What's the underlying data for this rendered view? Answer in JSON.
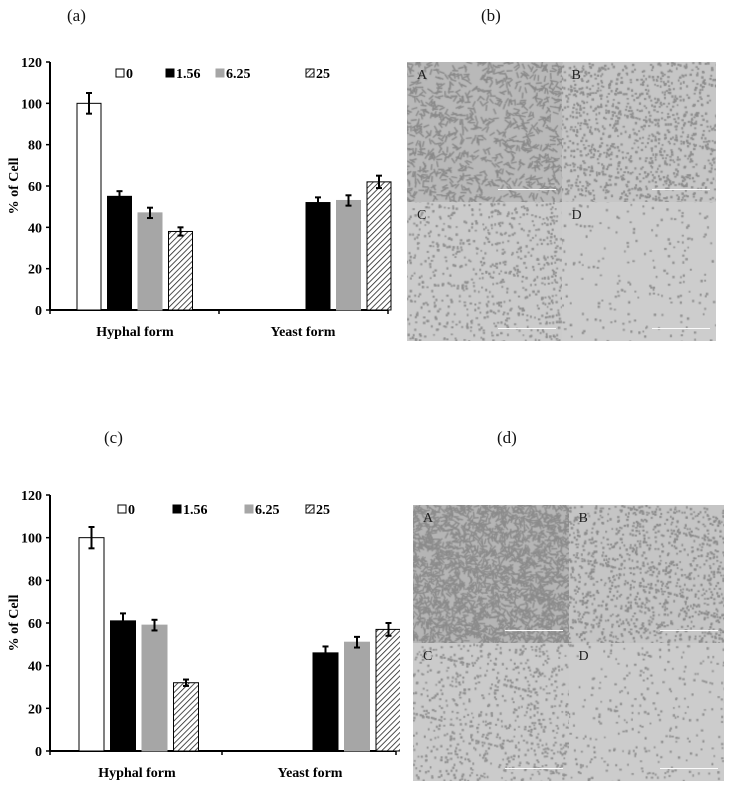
{
  "panels": {
    "a": {
      "label": "(a)"
    },
    "b": {
      "label": "(b)"
    },
    "c": {
      "label": "(c)"
    },
    "d": {
      "label": "(d)"
    }
  },
  "legend": [
    {
      "label": "0",
      "fill": "#ffffff",
      "pattern": "none"
    },
    {
      "label": "1.56",
      "fill": "#000000",
      "pattern": "none"
    },
    {
      "label": "6.25",
      "fill": "#a6a6a6",
      "pattern": "none"
    },
    {
      "label": "25",
      "fill": "#ffffff",
      "pattern": "hatch"
    }
  ],
  "axis": {
    "ylabel": "% of Cell",
    "yticks": [
      "0",
      "20",
      "40",
      "60",
      "80",
      "100",
      "120"
    ],
    "categories": [
      "Hyphal form",
      "Yeast form"
    ]
  },
  "micrographs": {
    "b": {
      "tiles": [
        "A",
        "B",
        "C",
        "D"
      ]
    },
    "d": {
      "tiles": [
        "A",
        "B",
        "C",
        "D"
      ]
    }
  },
  "chart_data": [
    {
      "panel": "(a)",
      "type": "bar",
      "title": "",
      "xlabel": "",
      "ylabel": "% of Cell",
      "ylim": [
        0,
        120
      ],
      "yticks": [
        0,
        20,
        40,
        60,
        80,
        100,
        120
      ],
      "categories": [
        "Hyphal form",
        "Yeast form"
      ],
      "legend_position": "top",
      "grid": false,
      "series": [
        {
          "name": "0",
          "values": [
            100,
            null
          ],
          "errors": [
            5,
            null
          ]
        },
        {
          "name": "1.56",
          "values": [
            55,
            52
          ],
          "errors": [
            2.5,
            2.5
          ]
        },
        {
          "name": "6.25",
          "values": [
            47,
            53
          ],
          "errors": [
            2.5,
            2.5
          ]
        },
        {
          "name": "25",
          "values": [
            38,
            62
          ],
          "errors": [
            2,
            3
          ]
        }
      ]
    },
    {
      "panel": "(c)",
      "type": "bar",
      "title": "",
      "xlabel": "",
      "ylabel": "% of Cell",
      "ylim": [
        0,
        120
      ],
      "yticks": [
        0,
        20,
        40,
        60,
        80,
        100,
        120
      ],
      "categories": [
        "Hyphal form",
        "Yeast form"
      ],
      "legend_position": "top",
      "grid": false,
      "series": [
        {
          "name": "0",
          "values": [
            100,
            null
          ],
          "errors": [
            5,
            null
          ]
        },
        {
          "name": "1.56",
          "values": [
            61,
            46
          ],
          "errors": [
            3.5,
            3
          ]
        },
        {
          "name": "6.25",
          "values": [
            59,
            51
          ],
          "errors": [
            2.5,
            2.5
          ]
        },
        {
          "name": "25",
          "values": [
            32,
            57
          ],
          "errors": [
            1.5,
            3
          ]
        }
      ]
    }
  ]
}
